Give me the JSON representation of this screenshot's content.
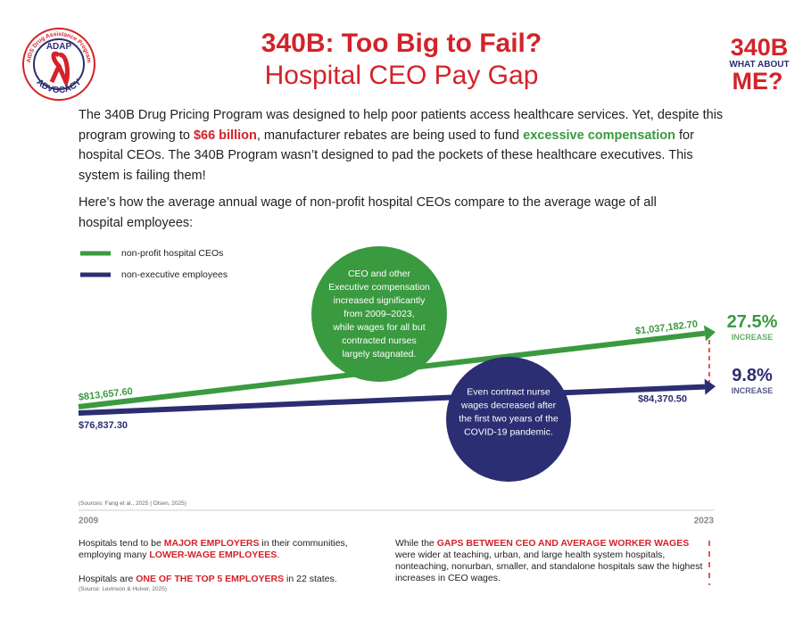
{
  "header": {
    "logo_left": {
      "arc": "AIDS Drug Assistance Program",
      "top": "ADAP",
      "bottom": "ADVOCACY"
    },
    "title": "340B: Too Big to Fail?",
    "subtitle": "Hospital CEO Pay Gap",
    "logo_right": {
      "line1": "340B",
      "line2": "WHAT ABOUT",
      "line3": "ME?"
    }
  },
  "intro": [
    "The 340B Drug Pricing Program was designed to help poor patients access healthcare services. Yet, despite this program growing to ",
    "$66 billion",
    ", manufacturer rebates are being used to fund ",
    "excessive compensation",
    " for hospital CEOs. The 340B Program wasn’t designed to pad the pockets of these healthcare executives. This system is failing them!"
  ],
  "lead": "Here’s how the average annual wage of non-profit hospital CEOs compare to the average wage of all hospital employees:",
  "chart_data": {
    "type": "line",
    "categories": [
      "2009",
      "2023"
    ],
    "series": [
      {
        "name": "non-profit hospital CEOs",
        "color": "#3a9a40",
        "values": [
          813657.6,
          1037182.7
        ],
        "value_labels": [
          "$813,657.60",
          "$1,037,182.70"
        ]
      },
      {
        "name": "non-executive employees",
        "color": "#2b2e72",
        "values": [
          76837.3,
          84370.5
        ],
        "value_labels": [
          "$76,837.30",
          "$84,370.50"
        ]
      }
    ],
    "increases": [
      {
        "text": "27.5%",
        "label": "INCREASE"
      },
      {
        "text": "9.8%",
        "label": "INCREASE"
      }
    ],
    "callouts": [
      [
        "CEO and other",
        "Executive compensation",
        "increased significantly",
        "from 2009–2023,",
        "while wages for all but",
        "contracted nurses",
        "largely stagnated."
      ],
      [
        "Even contract nurse",
        "wages decreased after",
        "the first two years of the",
        "COVID-19 pandemic."
      ]
    ],
    "source": "(Sources: Fang et al., 2025 | Olsen, 2025)"
  },
  "footer": {
    "left": [
      [
        "Hospitals tend to be ",
        "MAJOR EMPLOYERS",
        " in their communities, employing many ",
        "LOWER-WAGE EMPLOYEES",
        "."
      ],
      [
        "Hospitals are ",
        "ONE OF THE TOP 5 EMPLOYERS",
        " in 22 states."
      ]
    ],
    "left_source": "(Source: Levinson & Hulver, 2025)",
    "right": [
      "While the ",
      "GAPS BETWEEN CEO AND AVERAGE WORKER WAGES",
      " were wider at teaching, urban, and large health system hospitals, nonteaching, nonurban, smaller, and standalone hospitals saw the highest increases in CEO wages."
    ]
  }
}
